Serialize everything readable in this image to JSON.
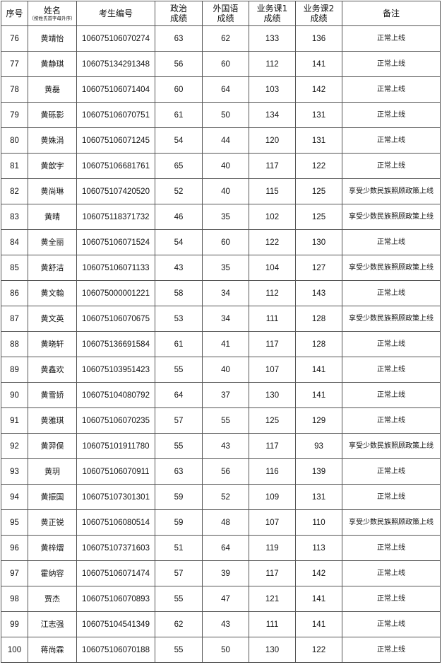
{
  "headers": {
    "seq": "序号",
    "name": "姓名",
    "name_note": "（按姓氏首字母升序）",
    "exam_id": "考生编号",
    "politics": "政治成绩",
    "foreign": "外国语成绩",
    "course1": "业务课1成绩",
    "course2": "业务课2成绩",
    "remark": "备注"
  },
  "rows": [
    {
      "seq": "76",
      "name": "黄靖怡",
      "id": "106075106070274",
      "politics": "63",
      "foreign": "62",
      "c1": "133",
      "c2": "136",
      "remark": "正常上线"
    },
    {
      "seq": "77",
      "name": "黄静琪",
      "id": "106075134291348",
      "politics": "56",
      "foreign": "60",
      "c1": "112",
      "c2": "141",
      "remark": "正常上线"
    },
    {
      "seq": "78",
      "name": "黄磊",
      "id": "106075106071404",
      "politics": "60",
      "foreign": "64",
      "c1": "103",
      "c2": "142",
      "remark": "正常上线"
    },
    {
      "seq": "79",
      "name": "黄砾影",
      "id": "106075106070751",
      "politics": "61",
      "foreign": "50",
      "c1": "134",
      "c2": "131",
      "remark": "正常上线"
    },
    {
      "seq": "80",
      "name": "黄姝涓",
      "id": "106075106071245",
      "politics": "54",
      "foreign": "44",
      "c1": "120",
      "c2": "131",
      "remark": "正常上线"
    },
    {
      "seq": "81",
      "name": "黄歆宇",
      "id": "106075106681761",
      "politics": "65",
      "foreign": "40",
      "c1": "117",
      "c2": "122",
      "remark": "正常上线"
    },
    {
      "seq": "82",
      "name": "黄尚琳",
      "id": "106075107420520",
      "politics": "52",
      "foreign": "40",
      "c1": "115",
      "c2": "125",
      "remark": "享受少数民族照顾政策上线"
    },
    {
      "seq": "83",
      "name": "黄晴",
      "id": "106075118371732",
      "politics": "46",
      "foreign": "35",
      "c1": "102",
      "c2": "125",
      "remark": "享受少数民族照顾政策上线"
    },
    {
      "seq": "84",
      "name": "黄全丽",
      "id": "106075106071524",
      "politics": "54",
      "foreign": "60",
      "c1": "122",
      "c2": "130",
      "remark": "正常上线"
    },
    {
      "seq": "85",
      "name": "黄舒洁",
      "id": "106075106071133",
      "politics": "43",
      "foreign": "35",
      "c1": "104",
      "c2": "127",
      "remark": "享受少数民族照顾政策上线"
    },
    {
      "seq": "86",
      "name": "黄文翰",
      "id": "106075000001221",
      "politics": "58",
      "foreign": "34",
      "c1": "112",
      "c2": "143",
      "remark": "正常上线"
    },
    {
      "seq": "87",
      "name": "黄文英",
      "id": "106075106070675",
      "politics": "53",
      "foreign": "34",
      "c1": "111",
      "c2": "128",
      "remark": "享受少数民族照顾政策上线"
    },
    {
      "seq": "88",
      "name": "黄晓轩",
      "id": "106075136691584",
      "politics": "61",
      "foreign": "41",
      "c1": "117",
      "c2": "128",
      "remark": "正常上线"
    },
    {
      "seq": "89",
      "name": "黄鑫欢",
      "id": "106075103951423",
      "politics": "55",
      "foreign": "40",
      "c1": "107",
      "c2": "141",
      "remark": "正常上线"
    },
    {
      "seq": "90",
      "name": "黄雪娇",
      "id": "106075104080792",
      "politics": "64",
      "foreign": "37",
      "c1": "130",
      "c2": "141",
      "remark": "正常上线"
    },
    {
      "seq": "91",
      "name": "黄雅琪",
      "id": "106075106070235",
      "politics": "57",
      "foreign": "55",
      "c1": "125",
      "c2": "129",
      "remark": "正常上线"
    },
    {
      "seq": "92",
      "name": "黄羿俣",
      "id": "106075101911780",
      "politics": "55",
      "foreign": "43",
      "c1": "117",
      "c2": "93",
      "remark": "享受少数民族照顾政策上线"
    },
    {
      "seq": "93",
      "name": "黄玥",
      "id": "106075106070911",
      "politics": "63",
      "foreign": "56",
      "c1": "116",
      "c2": "139",
      "remark": "正常上线"
    },
    {
      "seq": "94",
      "name": "黄振国",
      "id": "106075107301301",
      "politics": "59",
      "foreign": "52",
      "c1": "109",
      "c2": "131",
      "remark": "正常上线"
    },
    {
      "seq": "95",
      "name": "黄正锐",
      "id": "106075106080514",
      "politics": "59",
      "foreign": "48",
      "c1": "107",
      "c2": "110",
      "remark": "享受少数民族照顾政策上线"
    },
    {
      "seq": "96",
      "name": "黄梓熠",
      "id": "106075107371603",
      "politics": "51",
      "foreign": "64",
      "c1": "119",
      "c2": "113",
      "remark": "正常上线"
    },
    {
      "seq": "97",
      "name": "霍纳容",
      "id": "106075106071474",
      "politics": "57",
      "foreign": "39",
      "c1": "117",
      "c2": "142",
      "remark": "正常上线"
    },
    {
      "seq": "98",
      "name": "贾杰",
      "id": "106075106070893",
      "politics": "55",
      "foreign": "47",
      "c1": "121",
      "c2": "141",
      "remark": "正常上线"
    },
    {
      "seq": "99",
      "name": "江志强",
      "id": "106075104541349",
      "politics": "62",
      "foreign": "43",
      "c1": "111",
      "c2": "141",
      "remark": "正常上线"
    },
    {
      "seq": "100",
      "name": "蒋尚霖",
      "id": "106075106070188",
      "politics": "55",
      "foreign": "50",
      "c1": "130",
      "c2": "122",
      "remark": "正常上线"
    }
  ]
}
